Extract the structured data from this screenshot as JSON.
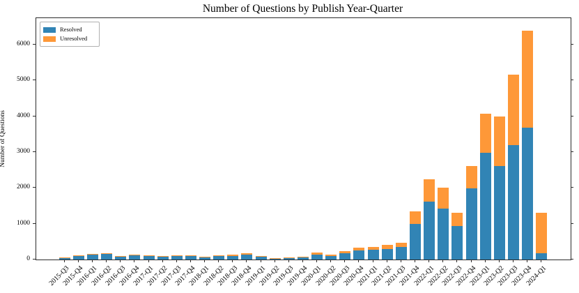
{
  "title": "Number of Questions by Publish Year-Quarter",
  "colors": {
    "resolved": "#3184b5",
    "unresolved": "#fe9838",
    "spine": "#2b2b2b"
  },
  "legend": {
    "position": "upper left"
  },
  "axes": {
    "y_label": "Number of Questions",
    "y_ticks": [
      0,
      1000,
      2000,
      3000,
      4000,
      5000,
      6000
    ]
  },
  "chart_data": {
    "type": "bar",
    "stacked": true,
    "title": "Number of Questions by Publish Year-Quarter",
    "xlabel": "",
    "ylabel": "Number of Questions",
    "ylim": [
      0,
      6740
    ],
    "grid": false,
    "legend_position": "upper left",
    "categories": [
      "2015-Q3",
      "2015-Q4",
      "2016-Q1",
      "2016-Q2",
      "2016-Q3",
      "2016-Q4",
      "2017-Q1",
      "2017-Q2",
      "2017-Q3",
      "2017-Q4",
      "2018-Q1",
      "2018-Q2",
      "2018-Q3",
      "2018-Q4",
      "2019-Q1",
      "2019-Q2",
      "2019-Q3",
      "2019-Q4",
      "2020-Q1",
      "2020-Q2",
      "2020-Q3",
      "2020-Q4",
      "2021-Q1",
      "2021-Q2",
      "2021-Q3",
      "2021-Q4",
      "2022-Q1",
      "2022-Q2",
      "2022-Q3",
      "2022-Q4",
      "2023-Q1",
      "2023-Q2",
      "2023-Q3",
      "2023-Q4",
      "2024-Q1"
    ],
    "series": [
      {
        "name": "Resolved",
        "color": "#3184b5",
        "values": [
          55,
          95,
          140,
          165,
          85,
          112,
          95,
          80,
          105,
          100,
          72,
          105,
          97,
          135,
          72,
          15,
          45,
          58,
          142,
          100,
          180,
          260,
          270,
          300,
          345,
          990,
          1620,
          1415,
          940,
          1980,
          2975,
          2605,
          3200,
          3690,
          180
        ]
      },
      {
        "name": "Unresolved",
        "color": "#fe9838",
        "values": [
          10,
          15,
          20,
          20,
          12,
          18,
          15,
          12,
          18,
          23,
          14,
          18,
          39,
          40,
          25,
          18,
          13,
          26,
          46,
          45,
          55,
          75,
          85,
          110,
          130,
          360,
          620,
          585,
          365,
          635,
          1100,
          1390,
          1960,
          2695,
          1125
        ]
      }
    ]
  }
}
